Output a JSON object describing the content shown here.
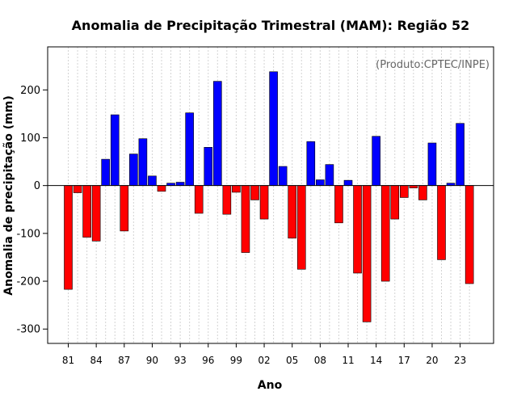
{
  "chart_data": {
    "type": "bar",
    "title": "Anomalia de Precipitação Trimestral (MAM): Região 52",
    "annotation": "(Produto:CPTEC/INPE)",
    "xlabel": "Ano",
    "ylabel": "Anomalia de precipitação (mm)",
    "ylim": [
      -330,
      290
    ],
    "yticks": [
      -300,
      -200,
      -100,
      0,
      100,
      200
    ],
    "ytick_labels": [
      "-300",
      "-200",
      "-100",
      "0",
      "100",
      "200"
    ],
    "categories": [
      "1981",
      "1982",
      "1983",
      "1984",
      "1985",
      "1986",
      "1987",
      "1988",
      "1989",
      "1990",
      "1991",
      "1992",
      "1993",
      "1994",
      "1995",
      "1996",
      "1997",
      "1998",
      "1999",
      "2000",
      "2001",
      "2002",
      "2003",
      "2004",
      "2005",
      "2006",
      "2007",
      "2008",
      "2009",
      "2010",
      "2011",
      "2012",
      "2013",
      "2014",
      "2015",
      "2016",
      "2017",
      "2018",
      "2019",
      "2020",
      "2021",
      "2022",
      "2023",
      "2024"
    ],
    "xtick_labels": [
      "81",
      "84",
      "87",
      "90",
      "93",
      "96",
      "99",
      "02",
      "05",
      "08",
      "11",
      "14",
      "17",
      "20",
      "23"
    ],
    "xtick_positions": [
      "1981",
      "1984",
      "1987",
      "1990",
      "1993",
      "1996",
      "1999",
      "2002",
      "2005",
      "2008",
      "2011",
      "2014",
      "2017",
      "2020",
      "2023"
    ],
    "values": [
      -217,
      -15,
      -108,
      -116,
      55,
      148,
      -95,
      66,
      98,
      20,
      -12,
      5,
      7,
      152,
      -58,
      80,
      218,
      -60,
      -14,
      -140,
      -30,
      -70,
      238,
      40,
      -110,
      -175,
      92,
      12,
      44,
      -78,
      11,
      -183,
      -285,
      103,
      -200,
      -70,
      -25,
      -5,
      -30,
      89,
      -155,
      5,
      130,
      -205
    ],
    "colors": {
      "positive": "#0000ff",
      "negative": "#ff0000",
      "zero_line": "#000000",
      "grid": "#d3d3d3",
      "frame": "#000000",
      "note": "#666666"
    },
    "grid": true
  }
}
